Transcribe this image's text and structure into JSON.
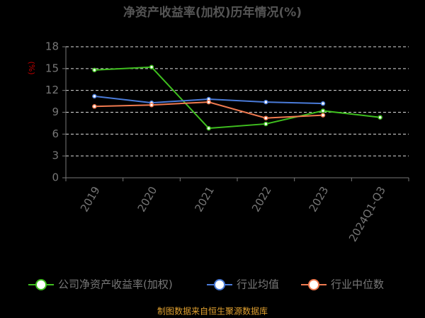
{
  "chart_data": {
    "type": "line",
    "title": "净资产收益率(加权)历年情况(%)",
    "y_label": "(%)",
    "categories": [
      "2019",
      "2020",
      "2021",
      "2022",
      "2023",
      "2024Q1-Q3"
    ],
    "series": [
      {
        "name": "公司净资产收益率(加权)",
        "color": "#3fbf1f",
        "values": [
          14.8,
          15.2,
          6.8,
          7.4,
          9.2,
          8.3
        ]
      },
      {
        "name": "行业均值",
        "color": "#4a7bd9",
        "values": [
          11.2,
          10.3,
          10.8,
          10.4,
          10.2,
          null
        ]
      },
      {
        "name": "行业中位数",
        "color": "#f07a50",
        "values": [
          9.8,
          10.0,
          10.4,
          8.2,
          8.6,
          null
        ]
      }
    ],
    "ylim": [
      0,
      18
    ],
    "yticks": [
      0,
      3,
      6,
      9,
      12,
      15,
      18
    ],
    "grid": true,
    "source": "制图数据来自恒生聚源数据库"
  }
}
